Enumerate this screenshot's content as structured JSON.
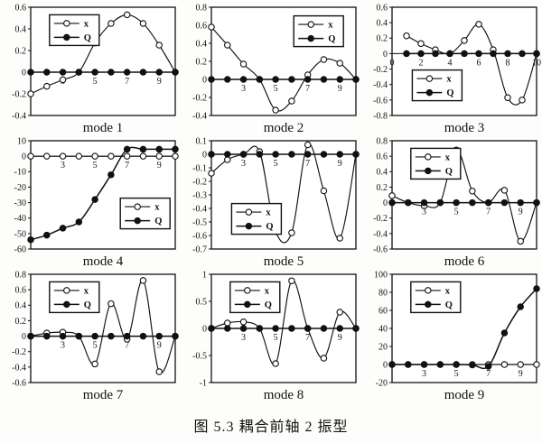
{
  "figure": {
    "caption": "图 5.3  耦合前轴 2 振型"
  },
  "chart_data": [
    {
      "type": "line",
      "title": "mode 1",
      "x": [
        1,
        2,
        3,
        4,
        5,
        6,
        7,
        8,
        9,
        10
      ],
      "xlim": [
        1,
        10
      ],
      "xticks": {
        "values": [
          3,
          5,
          7,
          9
        ],
        "labels": [
          "3",
          "5",
          "7",
          "9"
        ]
      },
      "ylim": [
        -0.4,
        0.6
      ],
      "yticks": [
        "0.6",
        "0.4",
        "0.2",
        "0",
        "-0.2",
        "-0.4"
      ],
      "legend": {
        "position": "top-left",
        "entries": [
          {
            "label": "x",
            "marker": "open-circle"
          },
          {
            "label": "Q",
            "marker": "filled-circle"
          }
        ]
      },
      "series": [
        {
          "name": "x",
          "marker": "open",
          "values": [
            -0.2,
            -0.13,
            -0.07,
            0,
            0.27,
            0.45,
            0.53,
            0.45,
            0.25,
            0
          ]
        },
        {
          "name": "Q",
          "marker": "filled",
          "values": [
            0,
            0,
            0,
            0,
            0,
            0,
            0,
            0,
            0,
            0
          ]
        }
      ]
    },
    {
      "type": "line",
      "title": "mode 2",
      "x": [
        1,
        2,
        3,
        4,
        5,
        6,
        7,
        8,
        9,
        10
      ],
      "xlim": [
        1,
        10
      ],
      "xticks": {
        "values": [
          3,
          5,
          7,
          9
        ],
        "labels": [
          "3",
          "5",
          "7",
          "9"
        ]
      },
      "ylim": [
        -0.4,
        0.8
      ],
      "yticks": [
        "0.8",
        "0.6",
        "0.4",
        "0.2",
        "0",
        "-0.2",
        "-0.4"
      ],
      "legend": {
        "position": "top-right",
        "entries": [
          {
            "label": "x",
            "marker": "open-circle"
          },
          {
            "label": "Q",
            "marker": "filled-circle"
          }
        ]
      },
      "series": [
        {
          "name": "x",
          "marker": "open",
          "values": [
            0.58,
            0.38,
            0.17,
            0,
            -0.34,
            -0.24,
            0.05,
            0.22,
            0.18,
            0
          ]
        },
        {
          "name": "Q",
          "marker": "filled",
          "values": [
            0,
            0,
            0,
            0,
            0,
            0,
            0,
            0,
            0,
            0
          ]
        }
      ]
    },
    {
      "type": "line",
      "title": "mode 3",
      "x": [
        1,
        2,
        3,
        4,
        5,
        6,
        7,
        8,
        9,
        10
      ],
      "xlim": [
        0,
        10
      ],
      "xticks": {
        "values": [
          0,
          2,
          4,
          6,
          8,
          10
        ],
        "labels": [
          "0",
          "2",
          "4",
          "6",
          "8",
          "10"
        ]
      },
      "ylim": [
        -0.8,
        0.6
      ],
      "yticks": [
        "0.6",
        "0.4",
        "0.2",
        "0",
        "-0.2",
        "-0.4",
        "-0.6",
        "-0.8"
      ],
      "legend": {
        "position": "bottom-left",
        "entries": [
          {
            "label": "x",
            "marker": "open-circle"
          },
          {
            "label": "Q",
            "marker": "filled-circle"
          }
        ]
      },
      "series": [
        {
          "name": "x",
          "marker": "open",
          "values": [
            0.23,
            0.13,
            0.05,
            0,
            0.17,
            0.38,
            0.05,
            -0.57,
            -0.6,
            0
          ]
        },
        {
          "name": "Q",
          "marker": "filled",
          "values": [
            0,
            0,
            0,
            0,
            0,
            0,
            0,
            0,
            0,
            0
          ]
        }
      ]
    },
    {
      "type": "line",
      "title": "mode 4",
      "x": [
        1,
        2,
        3,
        4,
        5,
        6,
        7,
        8,
        9,
        10
      ],
      "xlim": [
        1,
        10
      ],
      "xticks": {
        "values": [
          3,
          5,
          7,
          9
        ],
        "labels": [
          "3",
          "5",
          "7",
          "9"
        ]
      },
      "ylim": [
        -60,
        10
      ],
      "yticks": [
        "10",
        "0",
        "-10",
        "-20",
        "-30",
        "-40",
        "-50",
        "-60"
      ],
      "legend": {
        "position": "bottom-right",
        "entries": [
          {
            "label": "x",
            "marker": "open-circle"
          },
          {
            "label": "Q",
            "marker": "filled-circle"
          }
        ]
      },
      "series": [
        {
          "name": "x",
          "marker": "open",
          "values": [
            0,
            0,
            0,
            0,
            0,
            0,
            0,
            0,
            0,
            0
          ]
        },
        {
          "name": "Q",
          "marker": "filled",
          "values": [
            -54,
            -51,
            -46.5,
            -42.5,
            -28,
            -12,
            4.5,
            4.5,
            4.5,
            4.5
          ]
        }
      ]
    },
    {
      "type": "line",
      "title": "mode 5",
      "x": [
        1,
        2,
        3,
        4,
        5,
        6,
        7,
        8,
        9,
        10
      ],
      "xlim": [
        1,
        10
      ],
      "xticks": {
        "values": [
          3,
          5,
          7,
          9
        ],
        "labels": [
          "3",
          "5",
          "7",
          "9"
        ]
      },
      "ylim": [
        -0.7,
        0.1
      ],
      "yticks": [
        "0.1",
        "0",
        "-0.1",
        "-0.2",
        "-0.3",
        "-0.4",
        "-0.5",
        "-0.6",
        "-0.7"
      ],
      "legend": {
        "position": "bottom-left",
        "entries": [
          {
            "label": "x",
            "marker": "open-circle"
          },
          {
            "label": "Q",
            "marker": "filled-circle"
          }
        ]
      },
      "series": [
        {
          "name": "x",
          "marker": "open",
          "values": [
            -0.14,
            -0.04,
            0,
            0.02,
            -0.57,
            -0.58,
            0.07,
            -0.27,
            -0.62,
            0
          ]
        },
        {
          "name": "Q",
          "marker": "filled",
          "values": [
            0,
            0,
            0,
            0,
            0,
            0,
            0,
            0,
            0,
            0
          ]
        }
      ]
    },
    {
      "type": "line",
      "title": "mode 6",
      "x": [
        1,
        2,
        3,
        4,
        5,
        6,
        7,
        8,
        9,
        10
      ],
      "xlim": [
        1,
        10
      ],
      "xticks": {
        "values": [
          3,
          5,
          7,
          9
        ],
        "labels": [
          "3",
          "5",
          "7",
          "9"
        ]
      },
      "ylim": [
        -0.6,
        0.8
      ],
      "yticks": [
        "0.8",
        "0.6",
        "0.4",
        "0.2",
        "0",
        "-0.2",
        "-0.4",
        "-0.6"
      ],
      "legend": {
        "position": "top-left",
        "entries": [
          {
            "label": "x",
            "marker": "open-circle"
          },
          {
            "label": "Q",
            "marker": "filled-circle"
          }
        ]
      },
      "series": [
        {
          "name": "x",
          "marker": "open",
          "values": [
            0.09,
            0,
            -0.04,
            0,
            0.68,
            0.15,
            0,
            0.16,
            -0.5,
            0
          ]
        },
        {
          "name": "Q",
          "marker": "filled",
          "values": [
            0,
            0,
            0,
            0,
            0,
            0,
            0,
            0,
            0,
            0
          ]
        }
      ]
    },
    {
      "type": "line",
      "title": "mode 7",
      "x": [
        1,
        2,
        3,
        4,
        5,
        6,
        7,
        8,
        9,
        10
      ],
      "xlim": [
        1,
        10
      ],
      "xticks": {
        "values": [
          3,
          5,
          7,
          9
        ],
        "labels": [
          "3",
          "5",
          "7",
          "9"
        ]
      },
      "ylim": [
        -0.6,
        0.8
      ],
      "yticks": [
        "0.8",
        "0.6",
        "0.4",
        "0.2",
        "0",
        "-0.2",
        "-0.4",
        "-0.6"
      ],
      "legend": {
        "position": "top-left",
        "entries": [
          {
            "label": "x",
            "marker": "open-circle"
          },
          {
            "label": "Q",
            "marker": "filled-circle"
          }
        ]
      },
      "series": [
        {
          "name": "x",
          "marker": "open",
          "values": [
            0,
            0.04,
            0.05,
            0,
            -0.36,
            0.42,
            -0.04,
            0.72,
            -0.46,
            0
          ]
        },
        {
          "name": "Q",
          "marker": "filled",
          "values": [
            0,
            0,
            0,
            0,
            0,
            0,
            0,
            0,
            0,
            0
          ]
        }
      ]
    },
    {
      "type": "line",
      "title": "mode 8",
      "x": [
        1,
        2,
        3,
        4,
        5,
        6,
        7,
        8,
        9,
        10
      ],
      "xlim": [
        1,
        10
      ],
      "xticks": {
        "values": [
          3,
          5,
          7,
          9
        ],
        "labels": [
          "3",
          "5",
          "7",
          "9"
        ]
      },
      "ylim": [
        -1,
        1
      ],
      "yticks": [
        "1",
        "0.5",
        "0",
        "-0.5",
        "-1"
      ],
      "legend": {
        "position": "top-left",
        "entries": [
          {
            "label": "x",
            "marker": "open-circle"
          },
          {
            "label": "Q",
            "marker": "filled-circle"
          }
        ]
      },
      "series": [
        {
          "name": "x",
          "marker": "open",
          "values": [
            0,
            0.1,
            0.12,
            0,
            -0.65,
            0.88,
            0,
            -0.55,
            0.3,
            0
          ]
        },
        {
          "name": "Q",
          "marker": "filled",
          "values": [
            0,
            0,
            0,
            0,
            0,
            0,
            0,
            0,
            0,
            0
          ]
        }
      ]
    },
    {
      "type": "line",
      "title": "mode 9",
      "x": [
        1,
        2,
        3,
        4,
        5,
        6,
        7,
        8,
        9,
        10
      ],
      "xlim": [
        1,
        10
      ],
      "xticks": {
        "values": [
          3,
          5,
          7,
          9
        ],
        "labels": [
          "3",
          "5",
          "7",
          "9"
        ]
      },
      "ylim": [
        -20,
        100
      ],
      "yticks": [
        "100",
        "80",
        "60",
        "40",
        "20",
        "0",
        "-20"
      ],
      "legend": {
        "position": "top-left",
        "entries": [
          {
            "label": "x",
            "marker": "open-circle"
          },
          {
            "label": "Q",
            "marker": "filled-circle"
          }
        ]
      },
      "series": [
        {
          "name": "x",
          "marker": "open",
          "values": [
            0,
            0,
            0,
            0,
            0,
            0,
            0,
            0,
            0,
            0
          ]
        },
        {
          "name": "Q",
          "marker": "filled",
          "values": [
            0,
            0,
            0,
            0,
            0,
            -0.5,
            -2,
            35,
            64,
            84
          ]
        }
      ]
    }
  ]
}
